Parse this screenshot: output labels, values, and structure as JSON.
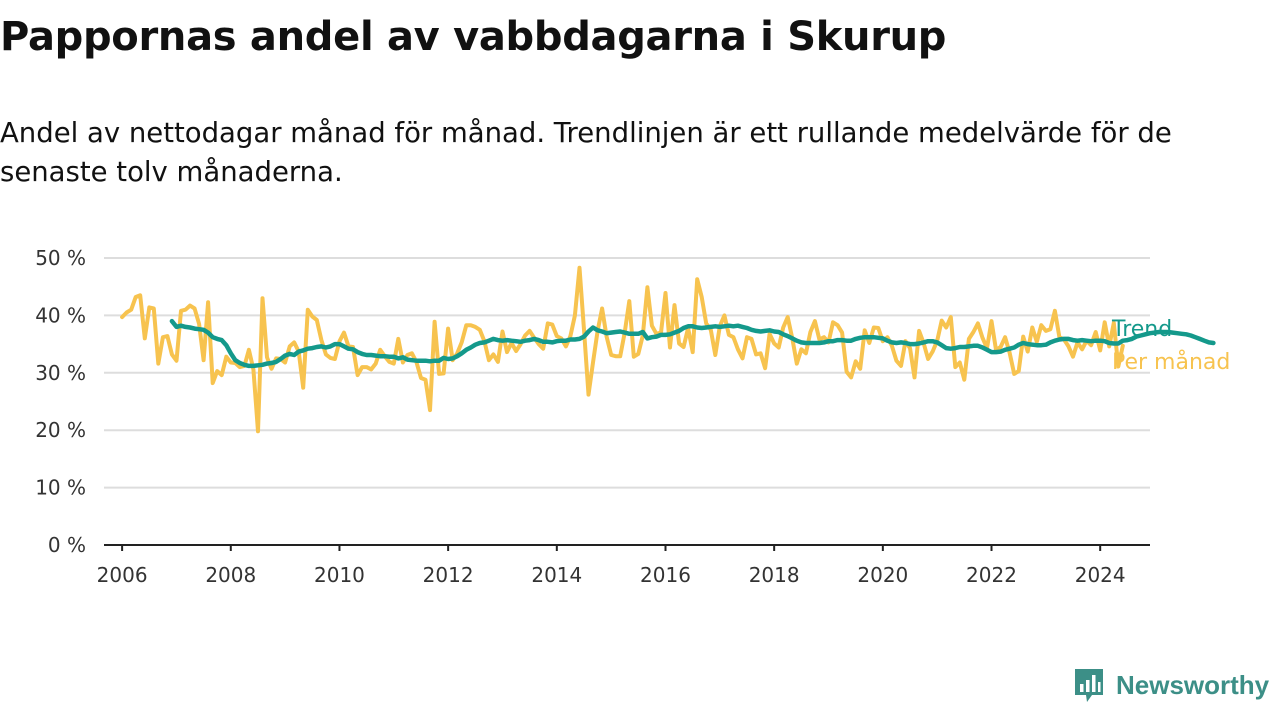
{
  "title": "Pappornas andel av vabbdagarna i Skurup",
  "subtitle": "Andel av nettodagar månad för månad. Trendlinjen är ett rullande medelvärde för de senaste tolv månaderna.",
  "brand": "Newsworthy",
  "colors": {
    "trend": "#14998b",
    "monthly": "#f7c34f",
    "grid": "#dddddd",
    "axis": "#222222",
    "text": "#333333",
    "brand": "#3c8f87"
  },
  "chart_data": {
    "type": "line",
    "x_ticks": [
      "2006",
      "2008",
      "2010",
      "2012",
      "2014",
      "2016",
      "2018",
      "2020",
      "2022",
      "2024"
    ],
    "y_ticks": [
      "0 %",
      "10 %",
      "20 %",
      "30 %",
      "40 %",
      "50 %"
    ],
    "xlim": [
      "2005-09",
      "2024-12"
    ],
    "ylim": [
      0,
      50
    ],
    "grid": "horizontal",
    "series": [
      {
        "name": "Trend",
        "color": "#14998b",
        "x_start": "2006-12",
        "values": [
          39,
          38,
          38.2,
          38,
          37.9,
          37.7,
          37.6,
          37.5,
          37,
          36.2,
          35.9,
          35.7,
          34.8,
          33.4,
          32.2,
          31.7,
          31.4,
          31.2,
          31.2,
          31.3,
          31.4,
          31.6,
          31.7,
          31.9,
          32.4,
          33,
          33.3,
          33.1,
          33.7,
          33.9,
          34.2,
          34.3,
          34.5,
          34.6,
          34.4,
          34.6,
          35,
          35,
          34.6,
          34.2,
          34.1,
          33.6,
          33.3,
          33.1,
          33.1,
          33,
          32.9,
          32.9,
          32.8,
          32.8,
          32.5,
          32.7,
          32.3,
          32.2,
          32.1,
          32.1,
          32.1,
          32,
          32.1,
          32.1,
          32.6,
          32.4,
          32.5,
          32.9,
          33.4,
          34,
          34.4,
          34.9,
          35.2,
          35.3,
          35.6,
          35.9,
          35.7,
          35.6,
          35.7,
          35.6,
          35.5,
          35.4,
          35.6,
          35.7,
          35.9,
          35.7,
          35.4,
          35.4,
          35.3,
          35.5,
          35.6,
          35.6,
          35.8,
          35.8,
          35.9,
          36.3,
          37.2,
          37.9,
          37.4,
          37.2,
          36.9,
          37,
          37.1,
          37.2,
          37,
          36.8,
          36.8,
          36.8,
          37.1,
          36,
          36.2,
          36.3,
          36.6,
          36.6,
          36.7,
          37,
          37.3,
          37.8,
          38.1,
          38.1,
          37.9,
          37.8,
          37.9,
          38,
          38.1,
          38,
          38.1,
          38.2,
          38.1,
          38.2,
          38,
          37.8,
          37.5,
          37.3,
          37.2,
          37.3,
          37.4,
          37.2,
          37.1,
          36.7,
          36.4,
          36,
          35.6,
          35.3,
          35.2,
          35.2,
          35.2,
          35.2,
          35.3,
          35.5,
          35.5,
          35.7,
          35.7,
          35.6,
          35.6,
          35.9,
          36.1,
          36.2,
          36.2,
          36.2,
          36.1,
          36,
          35.6,
          35.3,
          35.2,
          35.3,
          35.2,
          35,
          35,
          35.1,
          35.3,
          35.5,
          35.5,
          35.3,
          34.8,
          34.3,
          34.2,
          34.3,
          34.5,
          34.5,
          34.6,
          34.7,
          34.7,
          34.4,
          34,
          33.6,
          33.6,
          33.7,
          34,
          34.2,
          34.4,
          34.9,
          35.2,
          35,
          34.9,
          34.8,
          34.8,
          34.9,
          35.3,
          35.6,
          35.8,
          35.9,
          35.9,
          35.7,
          35.6,
          35.7,
          35.6,
          35.5,
          35.6,
          35.6,
          35.5,
          35.2,
          35.1,
          35.1,
          35.6,
          35.7,
          35.9,
          36.3,
          36.5,
          36.7,
          36.9,
          37,
          37.1,
          37.1,
          37.1,
          37,
          36.9,
          36.8,
          36.7,
          36.5,
          36.2,
          35.9,
          35.6,
          35.3,
          35.2
        ]
      },
      {
        "name": "Per månad",
        "color": "#f7c34f",
        "x_start": "2006-01",
        "values": [
          39.7,
          40.5,
          41,
          43.2,
          43.5,
          36,
          41.4,
          41.2,
          31.6,
          36.2,
          36.4,
          33.2,
          32.1,
          40.8,
          41,
          41.7,
          41.2,
          38.5,
          32.2,
          42.3,
          28.2,
          30.3,
          29.6,
          32.8,
          31.8,
          31.7,
          31,
          31.2,
          34,
          30.6,
          19.8,
          43,
          32.7,
          30.7,
          32.5,
          32.4,
          31.8,
          34.6,
          35.3,
          33.7,
          27.4,
          41,
          39.8,
          39.2,
          35.7,
          33.2,
          32.6,
          32.4,
          35.5,
          37,
          34.6,
          34.5,
          29.6,
          31,
          31,
          30.6,
          31.6,
          34,
          32.9,
          31.9,
          31.6,
          35.9,
          31.8,
          33.1,
          33.4,
          31.9,
          29.1,
          28.8,
          23.5,
          38.9,
          29.8,
          29.9,
          37.7,
          32.2,
          33.4,
          35.3,
          38.3,
          38.3,
          38,
          37.5,
          35.5,
          32.2,
          33.2,
          31.9,
          37.2,
          33.6,
          35.2,
          33.8,
          35,
          36.5,
          37.3,
          36.1,
          35,
          34.2,
          38.6,
          38.4,
          36.4,
          36,
          34.6,
          36.4,
          40,
          48.3,
          37.5,
          26.2,
          31.8,
          37.3,
          41.2,
          36.3,
          33.1,
          32.9,
          32.9,
          37,
          42.5,
          32.8,
          33.3,
          36.5,
          44.9,
          38.2,
          36.8,
          37,
          43.9,
          34.4,
          41.8,
          35.1,
          34.5,
          37.8,
          33.6,
          46.3,
          43.2,
          38.6,
          37.5,
          33.1,
          38.1,
          40,
          36.6,
          36.2,
          34.1,
          32.5,
          36.2,
          35.9,
          33.2,
          33.4,
          30.8,
          36.8,
          35.1,
          34.4,
          37.9,
          39.7,
          36,
          31.6,
          34.1,
          33.4,
          37.1,
          39,
          35.8,
          36.2,
          35.3,
          38.8,
          38.3,
          37,
          30.2,
          29.2,
          32,
          30.7,
          37.4,
          35.2,
          37.9,
          37.8,
          35.5,
          36.2,
          34.7,
          32.1,
          31.2,
          35.5,
          34.3,
          29.2,
          37.3,
          35.2,
          32.4,
          33.7,
          35.6,
          39.1,
          37.9,
          39.7,
          31,
          31.8,
          28.8,
          35.9,
          37.1,
          38.6,
          36.1,
          34.3,
          39,
          34,
          34.5,
          36.2,
          33.5,
          29.8,
          30.3,
          36.3,
          33.7,
          37.9,
          35.4,
          38.3,
          37.3,
          37.6,
          40.8,
          36.2,
          35.8,
          34.6,
          32.8,
          35.3,
          34.1,
          35.6,
          34.8,
          37.1,
          33.9,
          38.8,
          34.6,
          38.7,
          31.1,
          34.7
        ]
      }
    ]
  }
}
